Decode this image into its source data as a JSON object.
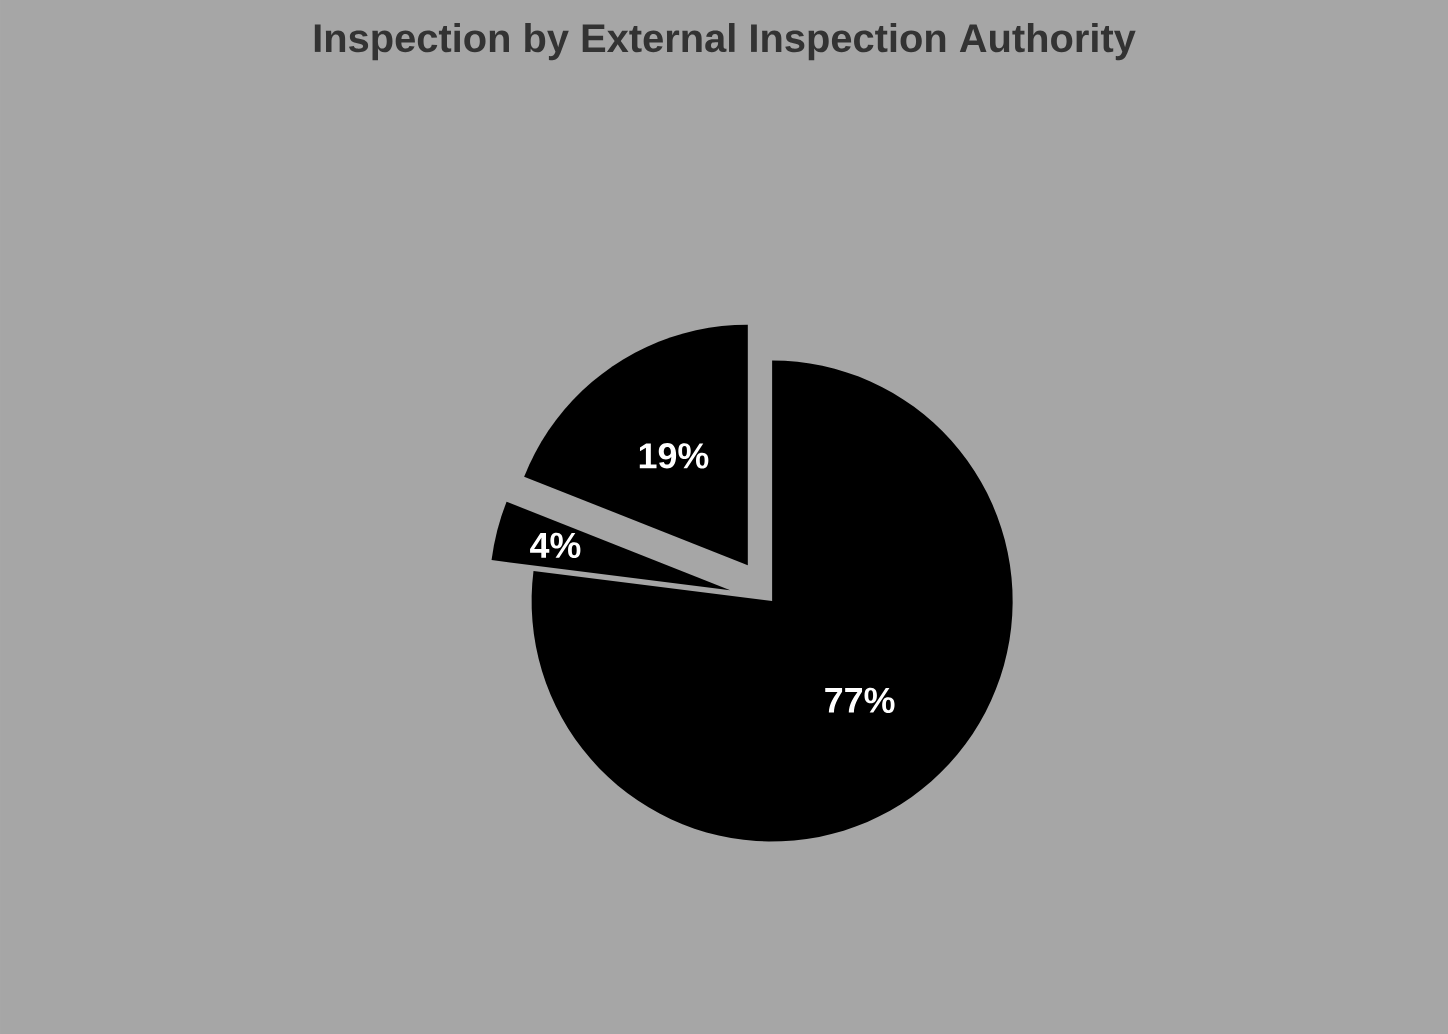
{
  "chart_data": {
    "type": "pie",
    "title": "Inspection by External Inspection Authority",
    "categories": [
      null,
      null,
      null
    ],
    "values": [
      77,
      4,
      19
    ],
    "colors": [
      "#000000",
      "#000000",
      "#000000"
    ],
    "value_labels": [
      "77%",
      "4%",
      "19%"
    ]
  }
}
